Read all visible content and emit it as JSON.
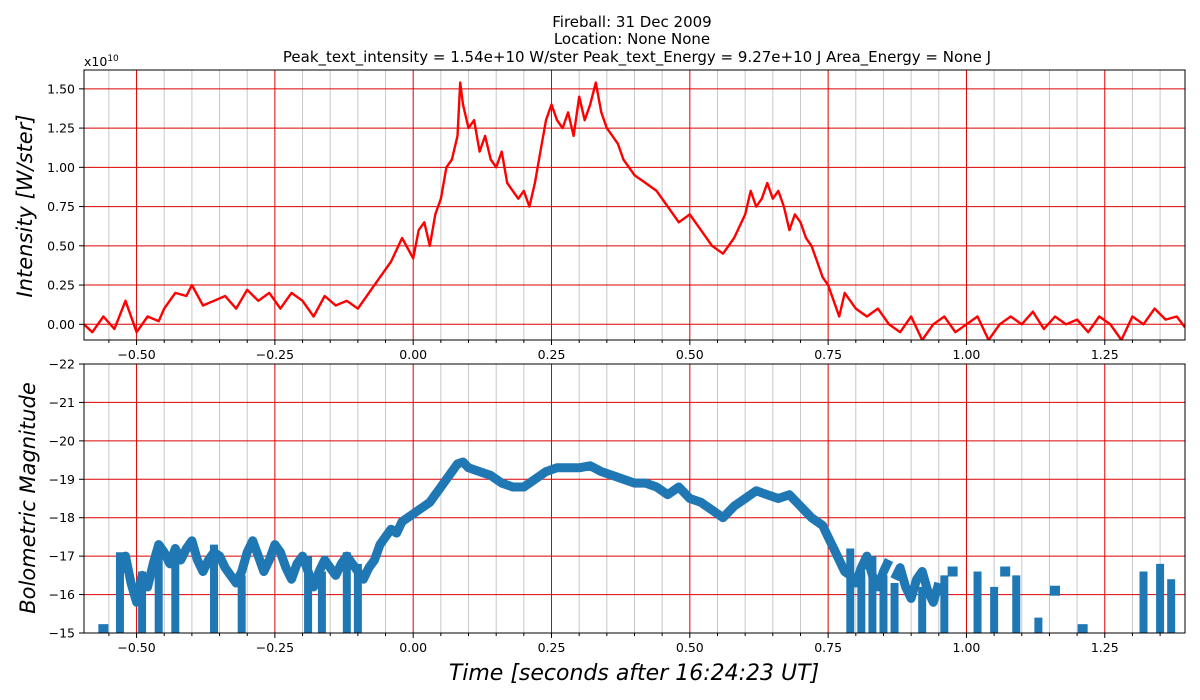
{
  "titles": {
    "line1": "Fireball: 31 Dec 2009",
    "line2": "Location: None  None",
    "line3": "Peak_text_intensity = 1.54e+10 W/ster       Peak_text_Energy = 9.27e+10 J       Area_Energy = None J"
  },
  "chart_data": [
    {
      "type": "line",
      "ylabel": "Intensity [W/ster]",
      "y_offset_label": "x10",
      "y_offset_exponent": "10",
      "xlim": [
        -0.595,
        1.395
      ],
      "ylim": [
        -0.1,
        1.62
      ],
      "xticks": [
        -0.5,
        -0.25,
        0.0,
        0.25,
        0.5,
        0.75,
        1.0,
        1.25
      ],
      "xticklabels": [
        "−0.50",
        "−0.25",
        "0.00",
        "0.25",
        "0.50",
        "0.75",
        "1.00",
        "1.25"
      ],
      "yticks": [
        0.0,
        0.25,
        0.5,
        0.75,
        1.0,
        1.25,
        1.5
      ],
      "yticklabels": [
        "0.00",
        "0.25",
        "0.50",
        "0.75",
        "1.00",
        "1.25",
        "1.50"
      ],
      "grid": true,
      "grid_color": "#dd0000",
      "minor_grid_color": "#c8c8c8",
      "series": [
        {
          "color": "#ff0000",
          "x": [
            -0.595,
            -0.58,
            -0.56,
            -0.54,
            -0.52,
            -0.5,
            -0.48,
            -0.46,
            -0.45,
            -0.43,
            -0.41,
            -0.4,
            -0.38,
            -0.36,
            -0.34,
            -0.32,
            -0.3,
            -0.28,
            -0.26,
            -0.24,
            -0.22,
            -0.2,
            -0.18,
            -0.16,
            -0.14,
            -0.12,
            -0.1,
            -0.08,
            -0.06,
            -0.04,
            -0.02,
            0.0,
            0.01,
            0.02,
            0.03,
            0.04,
            0.05,
            0.06,
            0.07,
            0.08,
            0.085,
            0.09,
            0.1,
            0.11,
            0.12,
            0.13,
            0.14,
            0.15,
            0.16,
            0.17,
            0.18,
            0.19,
            0.2,
            0.21,
            0.22,
            0.23,
            0.24,
            0.25,
            0.26,
            0.27,
            0.28,
            0.29,
            0.3,
            0.31,
            0.32,
            0.33,
            0.34,
            0.35,
            0.36,
            0.37,
            0.38,
            0.39,
            0.4,
            0.42,
            0.44,
            0.46,
            0.48,
            0.5,
            0.52,
            0.54,
            0.56,
            0.58,
            0.6,
            0.61,
            0.62,
            0.63,
            0.64,
            0.65,
            0.66,
            0.67,
            0.68,
            0.69,
            0.7,
            0.71,
            0.72,
            0.73,
            0.74,
            0.75,
            0.76,
            0.77,
            0.78,
            0.8,
            0.82,
            0.84,
            0.86,
            0.88,
            0.9,
            0.92,
            0.94,
            0.96,
            0.98,
            1.0,
            1.02,
            1.04,
            1.06,
            1.08,
            1.1,
            1.12,
            1.14,
            1.16,
            1.18,
            1.2,
            1.22,
            1.24,
            1.26,
            1.28,
            1.3,
            1.32,
            1.34,
            1.36,
            1.38,
            1.395
          ],
          "y": [
            0.0,
            -0.05,
            0.05,
            -0.03,
            0.15,
            -0.05,
            0.05,
            0.02,
            0.1,
            0.2,
            0.18,
            0.25,
            0.12,
            0.15,
            0.18,
            0.1,
            0.22,
            0.15,
            0.2,
            0.1,
            0.2,
            0.15,
            0.05,
            0.18,
            0.12,
            0.15,
            0.1,
            0.2,
            0.3,
            0.4,
            0.55,
            0.42,
            0.6,
            0.65,
            0.5,
            0.7,
            0.8,
            1.0,
            1.05,
            1.2,
            1.54,
            1.4,
            1.25,
            1.3,
            1.1,
            1.2,
            1.05,
            1.0,
            1.1,
            0.9,
            0.85,
            0.8,
            0.85,
            0.75,
            0.9,
            1.1,
            1.3,
            1.4,
            1.3,
            1.25,
            1.35,
            1.2,
            1.45,
            1.3,
            1.4,
            1.54,
            1.35,
            1.25,
            1.2,
            1.15,
            1.05,
            1.0,
            0.95,
            0.9,
            0.85,
            0.75,
            0.65,
            0.7,
            0.6,
            0.5,
            0.45,
            0.55,
            0.7,
            0.85,
            0.75,
            0.8,
            0.9,
            0.8,
            0.85,
            0.75,
            0.6,
            0.7,
            0.65,
            0.55,
            0.5,
            0.4,
            0.3,
            0.25,
            0.15,
            0.05,
            0.2,
            0.1,
            0.05,
            0.1,
            0.0,
            -0.05,
            0.05,
            -0.1,
            0.0,
            0.05,
            -0.05,
            0.0,
            0.05,
            -0.1,
            0.0,
            0.05,
            0.0,
            0.08,
            -0.03,
            0.05,
            0.0,
            0.03,
            -0.05,
            0.05,
            0.0,
            -0.1,
            0.05,
            0.0,
            0.1,
            0.03,
            0.05,
            -0.02
          ]
        }
      ]
    },
    {
      "type": "line",
      "ylabel": "Bolometric Magnitude",
      "xlabel": "Time [seconds after 16:24:23 UT]",
      "xlim": [
        -0.595,
        1.395
      ],
      "ylim": [
        -15,
        -22
      ],
      "xticks": [
        -0.5,
        -0.25,
        0.0,
        0.25,
        0.5,
        0.75,
        1.0,
        1.25
      ],
      "xticklabels": [
        "−0.50",
        "−0.25",
        "0.00",
        "0.25",
        "0.50",
        "0.75",
        "1.00",
        "1.25"
      ],
      "yticks": [
        -22,
        -21,
        -20,
        -19,
        -18,
        -17,
        -16,
        -15
      ],
      "yticklabels": [
        "−22",
        "−21",
        "−20",
        "−19",
        "−18",
        "−17",
        "−16",
        "−15"
      ],
      "grid": true,
      "grid_color": "#dd0000",
      "minor_grid_color": "#c8c8c8",
      "series": [
        {
          "color": "#1f77b4",
          "segments": [
            {
              "x": [
                -0.53,
                -0.52,
                -0.51,
                -0.5,
                -0.49,
                -0.48,
                -0.47,
                -0.46,
                -0.45,
                -0.44,
                -0.43,
                -0.42,
                -0.41,
                -0.4,
                -0.39,
                -0.38,
                -0.37,
                -0.36,
                -0.35,
                -0.34,
                -0.33,
                -0.32,
                -0.31,
                -0.3,
                -0.29,
                -0.28,
                -0.27,
                -0.26,
                -0.25,
                -0.24,
                -0.23,
                -0.22,
                -0.21,
                -0.2,
                -0.19,
                -0.18,
                -0.17,
                -0.16,
                -0.15,
                -0.14,
                -0.13,
                -0.12,
                -0.11,
                -0.1,
                -0.09,
                -0.08,
                -0.07,
                -0.06,
                -0.05,
                -0.04,
                -0.03,
                -0.02,
                -0.01,
                0.0,
                0.01,
                0.02,
                0.03,
                0.04,
                0.05,
                0.06,
                0.07,
                0.08,
                0.09,
                0.1,
                0.12,
                0.14,
                0.16,
                0.18,
                0.2,
                0.22,
                0.24,
                0.26,
                0.28,
                0.3,
                0.32,
                0.34,
                0.36,
                0.38,
                0.4,
                0.42,
                0.44,
                0.46,
                0.48,
                0.5,
                0.52,
                0.54,
                0.56,
                0.58,
                0.6,
                0.62,
                0.64,
                0.66,
                0.68,
                0.7,
                0.72,
                0.74,
                0.75,
                0.76,
                0.77,
                0.78,
                0.79,
                0.8,
                0.81,
                0.82,
                0.83,
                0.84,
                0.85,
                0.86
              ],
              "y": [
                -16.6,
                -17.0,
                -16.3,
                -15.8,
                -16.5,
                -16.2,
                -16.8,
                -17.3,
                -17.1,
                -16.8,
                -17.2,
                -16.9,
                -17.2,
                -17.4,
                -16.9,
                -16.6,
                -16.9,
                -17.1,
                -17.0,
                -16.7,
                -16.5,
                -16.3,
                -16.6,
                -17.1,
                -17.4,
                -17.0,
                -16.6,
                -16.9,
                -17.3,
                -17.1,
                -16.7,
                -16.4,
                -16.8,
                -17.0,
                -16.6,
                -16.2,
                -16.6,
                -16.9,
                -16.7,
                -16.5,
                -16.8,
                -17.0,
                -16.8,
                -16.6,
                -16.4,
                -16.7,
                -16.9,
                -17.3,
                -17.5,
                -17.7,
                -17.6,
                -17.9,
                -18.0,
                -18.1,
                -18.2,
                -18.3,
                -18.4,
                -18.6,
                -18.8,
                -19.0,
                -19.2,
                -19.4,
                -19.45,
                -19.3,
                -19.2,
                -19.1,
                -18.9,
                -18.8,
                -18.8,
                -19.0,
                -19.2,
                -19.3,
                -19.3,
                -19.3,
                -19.35,
                -19.2,
                -19.1,
                -19.0,
                -18.9,
                -18.9,
                -18.8,
                -18.6,
                -18.8,
                -18.5,
                -18.4,
                -18.2,
                -18.0,
                -18.3,
                -18.5,
                -18.7,
                -18.6,
                -18.5,
                -18.6,
                -18.3,
                -18.0,
                -17.8,
                -17.5,
                -17.2,
                -16.9,
                -16.6,
                -16.5,
                -16.3,
                -16.7,
                -17.0,
                -16.5,
                -16.2,
                -16.6,
                -16.9
              ]
            },
            {
              "x": [
                0.87,
                0.88,
                0.89,
                0.9,
                0.91,
                0.92,
                0.93,
                0.94,
                0.95
              ],
              "y": [
                -16.4,
                -16.7,
                -16.2,
                -15.9,
                -16.4,
                -16.6,
                -16.1,
                -15.8,
                -16.3
              ]
            }
          ],
          "points": [
            {
              "x": -0.56,
              "y": -15.1
            },
            {
              "x": -0.52,
              "y": -16.7
            },
            {
              "x": 0.975,
              "y": -16.6
            },
            {
              "x": 1.07,
              "y": -16.6
            },
            {
              "x": 1.16,
              "y": -16.1
            },
            {
              "x": 1.21,
              "y": -15.1
            }
          ],
          "spikes": [
            {
              "x": -0.53,
              "top": -17.1
            },
            {
              "x": -0.49,
              "top": -16.6
            },
            {
              "x": -0.46,
              "top": -17.1
            },
            {
              "x": -0.43,
              "top": -16.9
            },
            {
              "x": -0.36,
              "top": -17.3
            },
            {
              "x": -0.31,
              "top": -16.5
            },
            {
              "x": -0.19,
              "top": -17.0
            },
            {
              "x": -0.165,
              "top": -16.6
            },
            {
              "x": -0.12,
              "top": -17.1
            },
            {
              "x": -0.1,
              "top": -16.8
            },
            {
              "x": 0.79,
              "top": -17.2
            },
            {
              "x": 0.81,
              "top": -16.6
            },
            {
              "x": 0.83,
              "top": -17.0
            },
            {
              "x": 0.85,
              "top": -16.5
            },
            {
              "x": 0.87,
              "top": -16.3
            },
            {
              "x": 0.92,
              "top": -16.2
            },
            {
              "x": 0.96,
              "top": -16.5
            },
            {
              "x": 1.02,
              "top": -16.6
            },
            {
              "x": 1.05,
              "top": -16.2
            },
            {
              "x": 1.09,
              "top": -16.5
            },
            {
              "x": 1.13,
              "top": -15.4
            },
            {
              "x": 1.32,
              "top": -16.6
            },
            {
              "x": 1.35,
              "top": -16.8
            },
            {
              "x": 1.37,
              "top": -16.4
            }
          ]
        }
      ]
    }
  ]
}
